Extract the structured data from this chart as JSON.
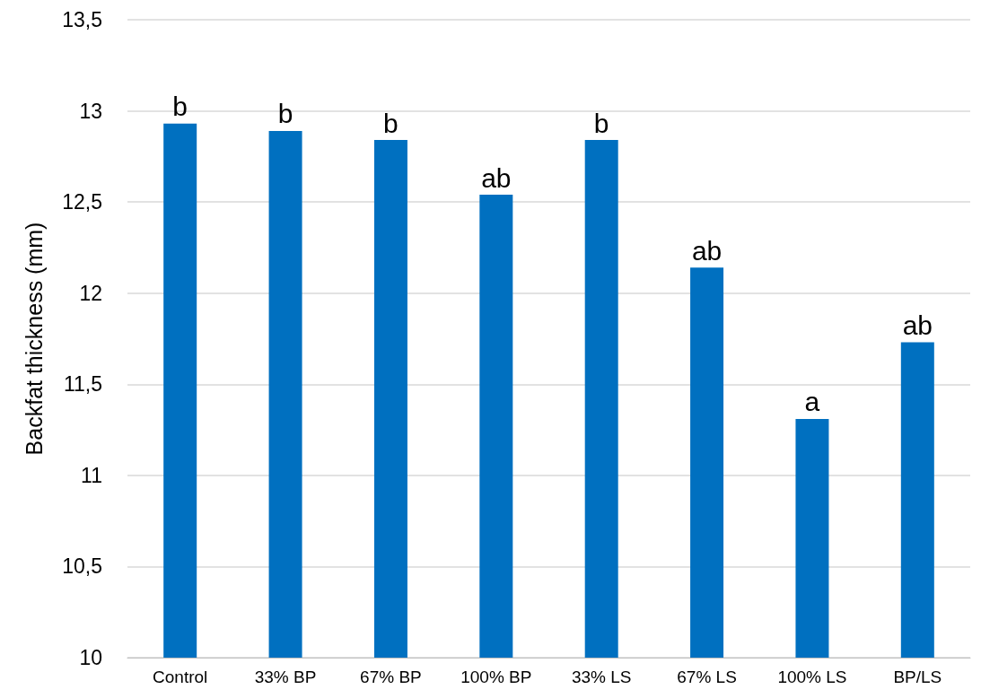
{
  "chart_data": {
    "type": "bar",
    "ylabel": "Backfat thickness (mm)",
    "categories": [
      "Control",
      "33% BP",
      "67% BP",
      "100% BP",
      "33% LS",
      "67% LS",
      "100% LS",
      "BP/LS"
    ],
    "values": [
      12.93,
      12.89,
      12.84,
      12.54,
      12.84,
      12.14,
      11.31,
      11.73
    ],
    "color": "#0070c0",
    "ylim": [
      10,
      13.5
    ],
    "yticks": [
      10,
      {
        "value": 10.5,
        "label": "10,5"
      },
      11,
      {
        "value": 11.5,
        "label": "11,5"
      },
      12,
      {
        "value": 12.5,
        "label": "12,5"
      },
      13,
      {
        "value": 13.5,
        "label": "13,5"
      }
    ],
    "grid": "y",
    "annotations": [
      {
        "text": "b",
        "x": "Control",
        "y": 12.93
      },
      {
        "text": "b",
        "x": "33% BP",
        "y": 12.89
      },
      {
        "text": "b",
        "x": "67% BP",
        "y": 12.84
      },
      {
        "text": "ab",
        "x": "100% BP",
        "y": 12.54
      },
      {
        "text": "b",
        "x": "33% LS",
        "y": 12.84
      },
      {
        "text": "ab",
        "x": "67% LS",
        "y": 12.14
      },
      {
        "text": "a",
        "x": "100% LS",
        "y": 11.31
      },
      {
        "text": "ab",
        "x": "BP/LS",
        "y": 11.73
      }
    ]
  }
}
